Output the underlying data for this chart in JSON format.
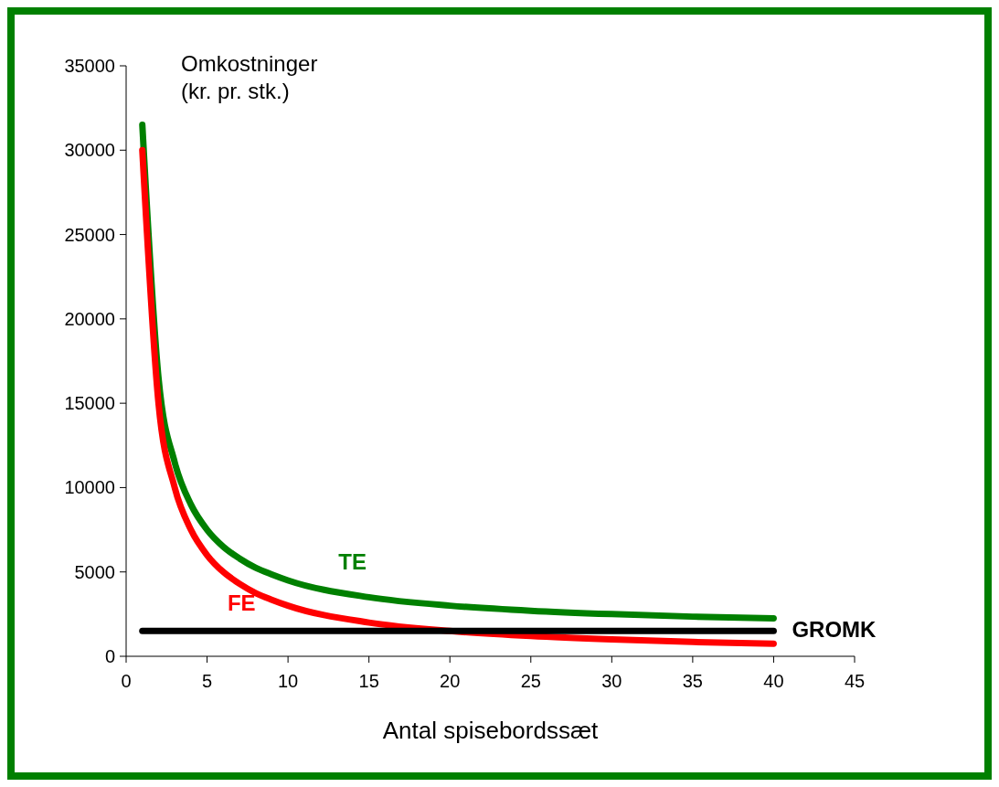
{
  "chart_data": {
    "type": "line",
    "xlabel": "Antal spisebordssæt",
    "ylabel": "Omkostninger\n(kr. pr. stk.)",
    "x": [
      1,
      2,
      3,
      4,
      5,
      6,
      7,
      8,
      9,
      10,
      15,
      20,
      25,
      30,
      35,
      40
    ],
    "series": [
      {
        "name": "TE",
        "color": "#008000",
        "values": [
          31500,
          16500,
          11500,
          9000,
          7500,
          6500,
          5800,
          5250,
          4850,
          4500,
          3500,
          3000,
          2700,
          2500,
          2350,
          2250
        ]
      },
      {
        "name": "FE",
        "color": "#ff0000",
        "values": [
          30000,
          15000,
          10000,
          7500,
          6000,
          5000,
          4300,
          3750,
          3350,
          3000,
          2000,
          1500,
          1200,
          1000,
          850,
          750
        ]
      },
      {
        "name": "GROMK",
        "color": "#000000",
        "values": [
          1500,
          1500,
          1500,
          1500,
          1500,
          1500,
          1500,
          1500,
          1500,
          1500,
          1500,
          1500,
          1500,
          1500,
          1500,
          1500
        ]
      }
    ],
    "xlim": [
      0,
      45
    ],
    "xticks": [
      0,
      5,
      10,
      15,
      20,
      25,
      30,
      35,
      40,
      45
    ],
    "ylim": [
      0,
      35000
    ],
    "yticks": [
      0,
      5000,
      10000,
      15000,
      20000,
      25000,
      30000,
      35000
    ],
    "grid": false
  }
}
